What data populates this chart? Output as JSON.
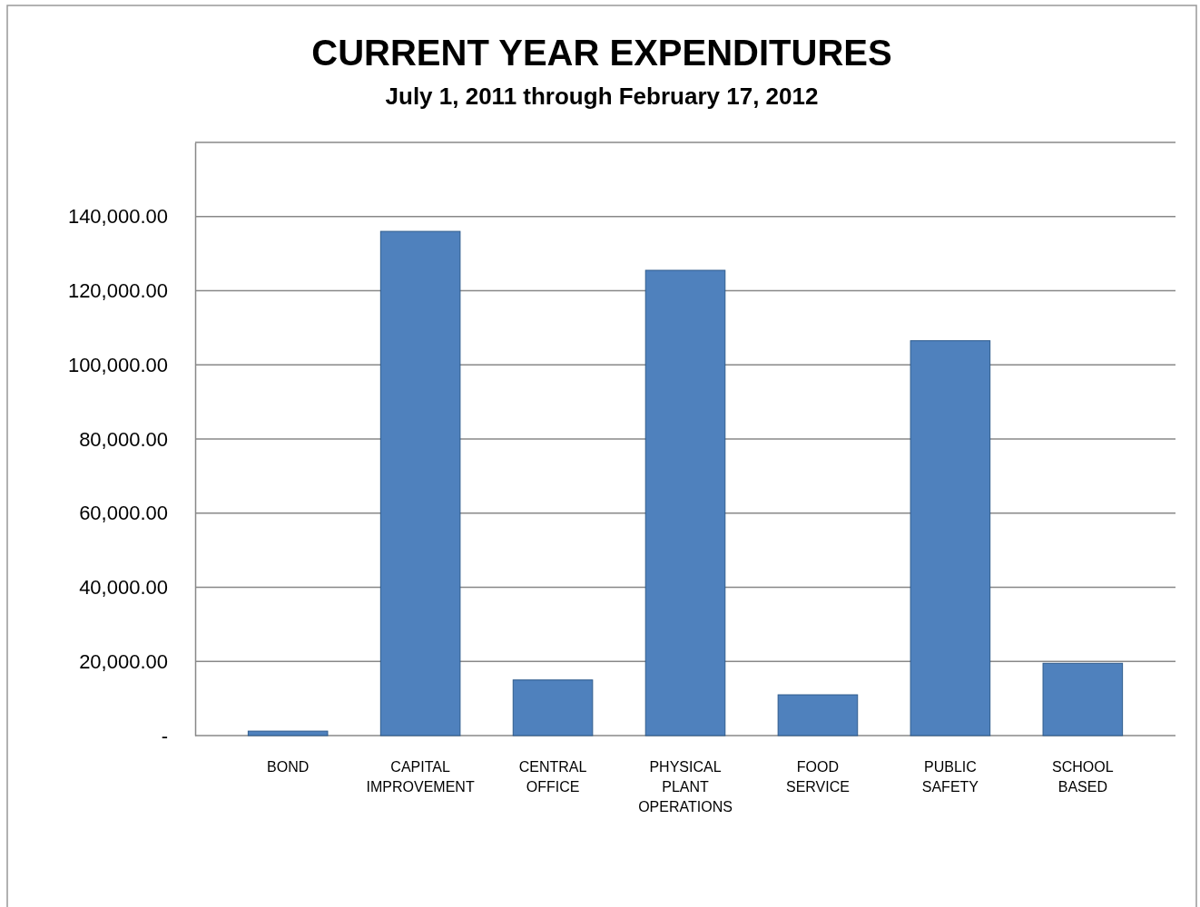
{
  "chart_data": {
    "type": "bar",
    "title": "CURRENT YEAR EXPENDITURES",
    "subtitle": "July 1, 2011 through February 17, 2012",
    "categories": [
      "BOND",
      "CAPITAL IMPROVEMENT",
      "CENTRAL OFFICE",
      "PHYSICAL PLANT OPERATIONS",
      "FOOD SERVICE",
      "PUBLIC SAFETY",
      "SCHOOL BASED"
    ],
    "values": [
      1200,
      136000,
      15000,
      125500,
      11000,
      106500,
      19500
    ],
    "color": "#4f81bd",
    "ylim": [
      0,
      160000
    ],
    "yticks": [
      {
        "value": 0,
        "label": "-"
      },
      {
        "value": 20000,
        "label": "20,000.00"
      },
      {
        "value": 40000,
        "label": "40,000.00"
      },
      {
        "value": 60000,
        "label": "60,000.00"
      },
      {
        "value": 80000,
        "label": "80,000.00"
      },
      {
        "value": 100000,
        "label": "100,000.00"
      },
      {
        "value": 120000,
        "label": "120,000.00"
      },
      {
        "value": 140000,
        "label": "140,000.00"
      },
      {
        "value": 160000,
        "label": null
      }
    ],
    "grid": "y"
  }
}
